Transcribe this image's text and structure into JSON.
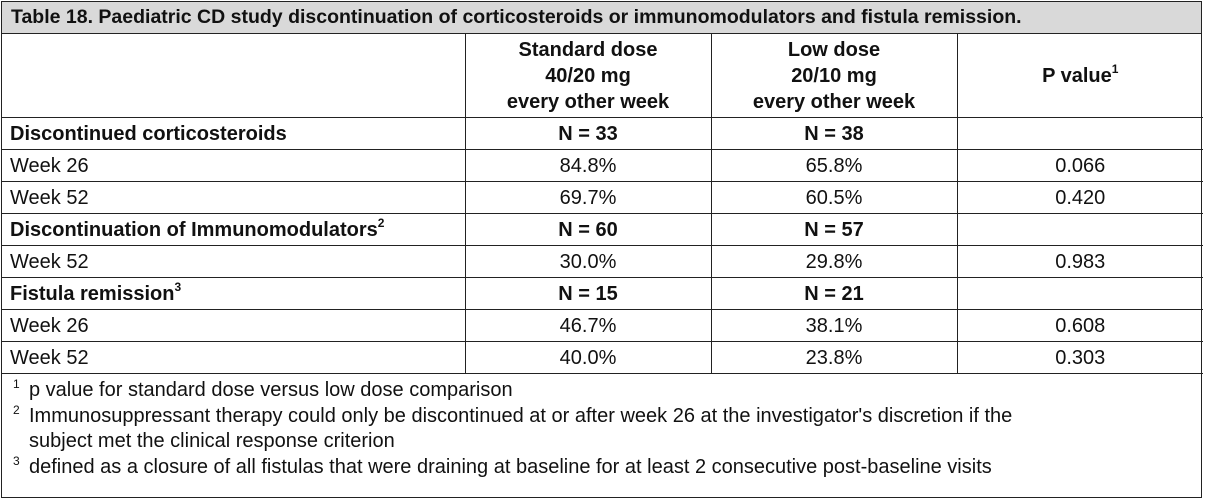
{
  "caption": "Table 18. Paediatric CD study discontinuation of corticosteroids or immunomodulators and fistula remission.",
  "columns": {
    "standard": [
      "Standard dose",
      "40/20 mg",
      "every other week"
    ],
    "low": [
      "Low dose",
      "20/10 mg",
      "every other week"
    ],
    "pvalue": "P value",
    "pvalue_sup": "1"
  },
  "rows": [
    {
      "label": "Discontinued corticosteroids",
      "sup": "",
      "standard": "N = 33",
      "low": "N = 38",
      "p": "",
      "section": true
    },
    {
      "label": "Week 26",
      "sup": "",
      "standard": "84.8%",
      "low": "65.8%",
      "p": "0.066",
      "section": false
    },
    {
      "label": "Week 52",
      "sup": "",
      "standard": "69.7%",
      "low": "60.5%",
      "p": "0.420",
      "section": false
    },
    {
      "label": "Discontinuation of Immunomodulators",
      "sup": "2",
      "standard": "N = 60",
      "low": "N = 57",
      "p": "",
      "section": true
    },
    {
      "label": "Week 52",
      "sup": "",
      "standard": "30.0%",
      "low": "29.8%",
      "p": "0.983",
      "section": false
    },
    {
      "label": "Fistula remission",
      "sup": "3",
      "standard": "N = 15",
      "low": "N = 21",
      "p": "",
      "section": true
    },
    {
      "label": "Week 26",
      "sup": "",
      "standard": "46.7%",
      "low": "38.1%",
      "p": "0.608",
      "section": false
    },
    {
      "label": "Week 52",
      "sup": "",
      "standard": "40.0%",
      "low": "23.8%",
      "p": "0.303",
      "section": false
    }
  ],
  "footnotes": [
    {
      "mark": "1",
      "lines": [
        "p value for standard dose versus low dose comparison"
      ]
    },
    {
      "mark": "2",
      "lines": [
        "Immunosuppressant therapy could only be discontinued at or after week 26 at the investigator's discretion if the",
        "subject met the clinical response criterion"
      ]
    },
    {
      "mark": "3",
      "lines": [
        "defined as a closure of all fistulas that were draining at baseline for at least 2 consecutive post-baseline visits"
      ]
    }
  ]
}
